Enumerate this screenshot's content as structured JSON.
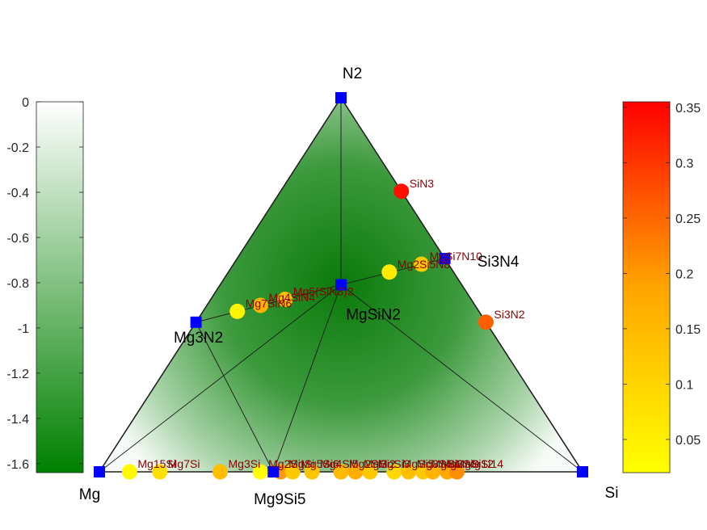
{
  "chart_data": {
    "type": "ternary-hull",
    "vertices": [
      {
        "name": "Mg",
        "label": "Mg"
      },
      {
        "name": "Si",
        "label": "Si"
      },
      {
        "name": "N2",
        "label": "N2"
      }
    ],
    "stable_phases": [
      {
        "label": "Mg",
        "composition": [
          1,
          0,
          0
        ],
        "energy": -1.64,
        "color": "#0000ff"
      },
      {
        "label": "Si",
        "composition": [
          0,
          1,
          0
        ],
        "energy": -1.64,
        "color": "#0000ff"
      },
      {
        "label": "N2",
        "composition": [
          0,
          0,
          1
        ],
        "energy": 0,
        "color": "#0000ff"
      },
      {
        "label": "Mg3N2",
        "composition": [
          0.6,
          0,
          0.4
        ],
        "energy": -0.98,
        "color": "#0000ff"
      },
      {
        "label": "Si3N4",
        "composition": [
          0,
          0.43,
          0.57
        ],
        "energy": -0.7,
        "color": "#0000ff"
      },
      {
        "label": "MgSiN2",
        "composition": [
          0.25,
          0.25,
          0.5
        ],
        "energy": -0.81,
        "color": "#0000ff"
      },
      {
        "label": "Mg9Si5",
        "composition": [
          0.64,
          0.36,
          0
        ],
        "energy": -1.64,
        "color": "#0000ff"
      }
    ],
    "unstable_phases": [
      {
        "label": "Si3N2",
        "composition": [
          0,
          0.6,
          0.4
        ],
        "e_above_hull": 0.26
      },
      {
        "label": "SiN3",
        "composition": [
          0,
          0.25,
          0.75
        ],
        "e_above_hull": 0.34
      },
      {
        "label": "MgSi7N10",
        "composition": [
          0.056,
          0.389,
          0.555
        ],
        "e_above_hull": 0.12
      },
      {
        "label": "Mg2Si5N8",
        "composition": [
          0.133,
          0.333,
          0.534
        ],
        "e_above_hull": 0.06
      },
      {
        "label": "Mg5(SiN3)2",
        "composition": [
          0.385,
          0.154,
          0.461
        ],
        "e_above_hull": 0.14
      },
      {
        "label": "Mg4SiN4",
        "composition": [
          0.444,
          0.111,
          0.445
        ],
        "e_above_hull": 0.16
      },
      {
        "label": "Mg7SiN6",
        "composition": [
          0.5,
          0.071,
          0.429
        ],
        "e_above_hull": 0.04
      },
      {
        "label": "Mg15Si",
        "composition": [
          0.9375,
          0.0625,
          0
        ],
        "e_above_hull": 0.03
      },
      {
        "label": "Mg7Si",
        "composition": [
          0.875,
          0.125,
          0
        ],
        "e_above_hull": 0.08
      },
      {
        "label": "Mg3Si",
        "composition": [
          0.75,
          0.25,
          0
        ],
        "e_above_hull": 0.14
      },
      {
        "label": "Mg2Si",
        "composition": [
          0.667,
          0.333,
          0
        ],
        "e_above_hull": 0.02
      },
      {
        "label": "MgSi",
        "composition": [
          0.625,
          0.375,
          0
        ],
        "e_above_hull": 0.2
      },
      {
        "label": "Mg5Si6",
        "composition": [
          0.6,
          0.4,
          0
        ],
        "e_above_hull": 0.12
      },
      {
        "label": "Mg4Si5",
        "composition": [
          0.56,
          0.44,
          0
        ],
        "e_above_hull": 0.13
      },
      {
        "label": "Mg2Si3",
        "composition": [
          0.5,
          0.5,
          0
        ],
        "e_above_hull": 0.15
      },
      {
        "label": "MgSi2",
        "composition": [
          0.47,
          0.53,
          0
        ],
        "e_above_hull": 0.17
      },
      {
        "label": "MgSi3",
        "composition": [
          0.44,
          0.56,
          0
        ],
        "e_above_hull": 0.12
      },
      {
        "label": "MgSi5",
        "composition": [
          0.39,
          0.61,
          0
        ],
        "e_above_hull": 0.09
      },
      {
        "label": "Mg3Si8",
        "composition": [
          0.36,
          0.64,
          0
        ],
        "e_above_hull": 0.14
      },
      {
        "label": "MgSi6",
        "composition": [
          0.33,
          0.67,
          0
        ],
        "e_above_hull": 0.12
      },
      {
        "label": "Mg2Si9",
        "composition": [
          0.31,
          0.69,
          0
        ],
        "e_above_hull": 0.16
      },
      {
        "label": "MgSi12",
        "composition": [
          0.28,
          0.72,
          0
        ],
        "e_above_hull": 0.18
      },
      {
        "label": "MgSi14",
        "composition": [
          0.26,
          0.74,
          0
        ],
        "e_above_hull": 0.21
      }
    ],
    "hull_edges": [
      [
        "Mg",
        "Mg3N2"
      ],
      [
        "Mg3N2",
        "N2"
      ],
      [
        "N2",
        "Si3N4"
      ],
      [
        "Si3N4",
        "Si"
      ],
      [
        "Si",
        "Mg"
      ],
      [
        "N2",
        "MgSiN2"
      ],
      [
        "Mg3N2",
        "MgSiN2"
      ],
      [
        "MgSiN2",
        "Si3N4"
      ],
      [
        "Mg",
        "MgSiN2"
      ],
      [
        "Mg9Si5",
        "MgSiN2"
      ],
      [
        "MgSiN2",
        "Si"
      ],
      [
        "Mg3N2",
        "Mg9Si5"
      ]
    ],
    "formation_energy_colorbar": {
      "range": [
        -1.64,
        0
      ],
      "ticks": [
        "0",
        "-0.2",
        "-0.4",
        "-0.6",
        "-0.8",
        "-1",
        "-1.2",
        "-1.4",
        "-1.6"
      ],
      "tick_values": [
        0,
        -0.2,
        -0.4,
        -0.6,
        -0.8,
        -1.0,
        -1.2,
        -1.4,
        -1.6
      ],
      "colors": [
        "#ffffff",
        "#008000"
      ]
    },
    "e_above_hull_colorbar": {
      "range": [
        0.02,
        0.355
      ],
      "ticks": [
        "0.35",
        "0.3",
        "0.25",
        "0.2",
        "0.15",
        "0.1",
        "0.05"
      ],
      "tick_values": [
        0.35,
        0.3,
        0.25,
        0.2,
        0.15,
        0.1,
        0.05
      ],
      "colors": [
        "#ffff00",
        "#ffa500",
        "#ff0000"
      ]
    }
  }
}
